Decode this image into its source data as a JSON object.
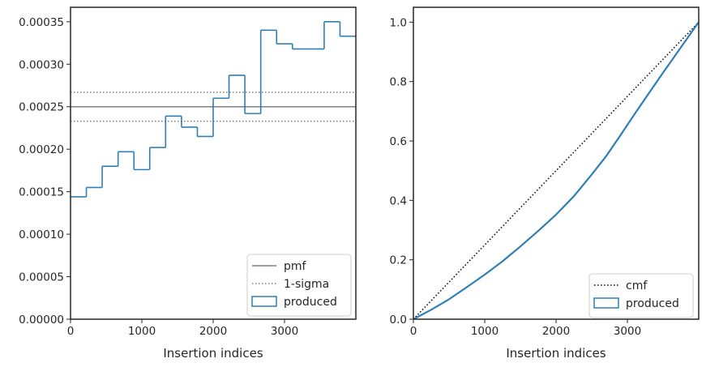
{
  "colors": {
    "produced": "#2f7fb5",
    "pmf": "#808080",
    "sigma": "#808080",
    "cmf": "#000000",
    "axes": "#262626"
  },
  "chart_data": [
    {
      "type": "step-histogram",
      "xlabel": "Insertion indices",
      "ylabel": "",
      "xlim": [
        0,
        4000
      ],
      "ylim": [
        0,
        0.000367
      ],
      "xticks": [
        {
          "value": 0,
          "label": "0"
        },
        {
          "value": 1000,
          "label": "1000"
        },
        {
          "value": 2000,
          "label": "2000"
        },
        {
          "value": 3000,
          "label": "3000"
        }
      ],
      "yticks": [
        {
          "value": 0,
          "label": "0.00000"
        },
        {
          "value": 5e-05,
          "label": "0.00005"
        },
        {
          "value": 0.0001,
          "label": "0.00010"
        },
        {
          "value": 0.00015,
          "label": "0.00015"
        },
        {
          "value": 0.0002,
          "label": "0.00020"
        },
        {
          "value": 0.00025,
          "label": "0.00025"
        },
        {
          "value": 0.0003,
          "label": "0.00030"
        },
        {
          "value": 0.00035,
          "label": "0.00035"
        }
      ],
      "pmf": 0.00025,
      "sigma_band": [
        0.000233,
        0.000267
      ],
      "bin_edges": [
        0,
        222,
        444,
        667,
        889,
        1111,
        1333,
        1556,
        1778,
        2000,
        2222,
        2444,
        2667,
        2889,
        3111,
        3333,
        3556,
        3778,
        4000
      ],
      "values": [
        0.000144,
        0.000155,
        0.00018,
        0.000197,
        0.000176,
        0.000202,
        0.000239,
        0.000226,
        0.000215,
        0.00026,
        0.000287,
        0.000242,
        0.00034,
        0.000324,
        0.000318,
        0.000318,
        0.00035,
        0.000333
      ],
      "legend": {
        "position": "lower right",
        "entries": [
          {
            "label": "pmf",
            "style": "solid-line"
          },
          {
            "label": "1-sigma",
            "style": "dotted-line"
          },
          {
            "label": "produced",
            "style": "patch"
          }
        ]
      }
    },
    {
      "type": "cumulative",
      "xlabel": "Insertion indices",
      "ylabel": "",
      "xlim": [
        0,
        4000
      ],
      "ylim": [
        0,
        1.05
      ],
      "xticks": [
        {
          "value": 0,
          "label": "0"
        },
        {
          "value": 1000,
          "label": "1000"
        },
        {
          "value": 2000,
          "label": "2000"
        },
        {
          "value": 3000,
          "label": "3000"
        }
      ],
      "yticks": [
        {
          "value": 0,
          "label": "0.0"
        },
        {
          "value": 0.2,
          "label": "0.2"
        },
        {
          "value": 0.4,
          "label": "0.4"
        },
        {
          "value": 0.6,
          "label": "0.6"
        },
        {
          "value": 0.8,
          "label": "0.8"
        },
        {
          "value": 1.0,
          "label": "1.0"
        }
      ],
      "cmf": {
        "x": [
          0,
          4000
        ],
        "y": [
          0,
          1.0
        ]
      },
      "produced": {
        "x": [
          0,
          250,
          500,
          750,
          1000,
          1250,
          1500,
          1750,
          2000,
          2250,
          2500,
          2700,
          2900,
          3100,
          3300,
          3500,
          3750,
          4000
        ],
        "y": [
          0,
          0.032,
          0.067,
          0.108,
          0.15,
          0.195,
          0.245,
          0.297,
          0.352,
          0.414,
          0.487,
          0.548,
          0.618,
          0.69,
          0.76,
          0.83,
          0.915,
          1.0
        ]
      },
      "legend": {
        "position": "lower right",
        "entries": [
          {
            "label": "cmf",
            "style": "dotted-line"
          },
          {
            "label": "produced",
            "style": "patch"
          }
        ]
      }
    }
  ]
}
